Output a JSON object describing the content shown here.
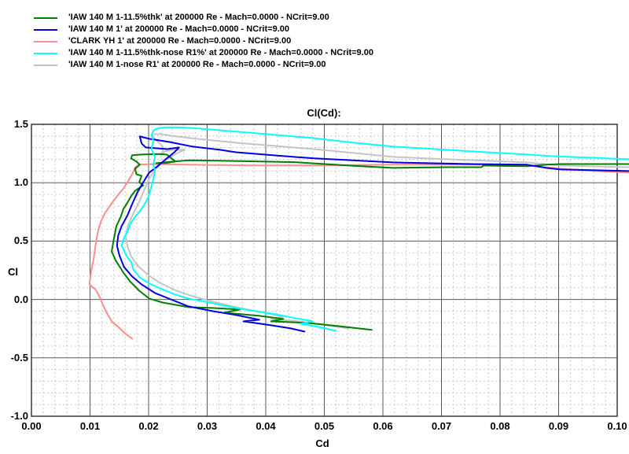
{
  "window": {
    "background": "#ffffff"
  },
  "legend": {
    "items": [
      {
        "label": "'IAW 140 M 1-11.5%thk' at 200000 Re - Mach=0.0000 - NCrit=9.00",
        "color": "#007f00"
      },
      {
        "label": "'IAW 140 M 1' at 200000 Re - Mach=0.0000 - NCrit=9.00",
        "color": "#0000e0"
      },
      {
        "label": "'CLARK YH 1' at 200000 Re - Mach=0.0000 - NCrit=9.00",
        "color": "#ff8c8c"
      },
      {
        "label": "'IAW 140 M 1-11.5%thk-nose R1%' at 200000 Re - Mach=0.0000 - NCrit=9.00",
        "color": "#00ffff"
      },
      {
        "label": "'IAW 140 M 1-nose R1' at 200000 Re - Mach=0.0000 - NCrit=9.00",
        "color": "#c4c4c4"
      }
    ]
  },
  "chart_data": {
    "type": "line",
    "title": "Cl(Cd):",
    "xlabel": "Cd",
    "ylabel": "Cl",
    "xlim": [
      0.0,
      0.1
    ],
    "ylim": [
      -1.0,
      1.5
    ],
    "x_minor_step": 0.002,
    "x_major_step": 0.01,
    "y_minor_step": 0.1,
    "y_major_step": 0.5,
    "grid": {
      "minor_color": "#c8c8c8",
      "major_color": "#5a5a5a",
      "border_color": "#3a3a3a"
    },
    "x_ticks": [
      {
        "v": 0.0,
        "label": "0.00"
      },
      {
        "v": 0.01,
        "label": "0.01"
      },
      {
        "v": 0.02,
        "label": "0.02"
      },
      {
        "v": 0.03,
        "label": "0.03"
      },
      {
        "v": 0.04,
        "label": "0.04"
      },
      {
        "v": 0.05,
        "label": "0.05"
      },
      {
        "v": 0.06,
        "label": "0.06"
      },
      {
        "v": 0.07,
        "label": "0.07"
      },
      {
        "v": 0.08,
        "label": "0.08"
      },
      {
        "v": 0.09,
        "label": "0.09"
      },
      {
        "v": 0.1,
        "label": "0.10"
      }
    ],
    "y_ticks": [
      {
        "v": 1.5,
        "label": "1.5"
      },
      {
        "v": 1.0,
        "label": "1.0"
      },
      {
        "v": 0.5,
        "label": "0.5"
      },
      {
        "v": 0.0,
        "label": "0.0"
      },
      {
        "v": -0.5,
        "label": "-0.5"
      },
      {
        "v": -1.0,
        "label": "-1.0"
      }
    ],
    "series": [
      {
        "name": "'IAW 140 M 1-11.5%thk' at 200000 Re - Mach=0.0000 - NCrit=9.00",
        "color": "#007f00",
        "z": 3,
        "points": [
          [
            0.0581,
            -0.261
          ],
          [
            0.0523,
            -0.228
          ],
          [
            0.047,
            -0.201
          ],
          [
            0.0409,
            -0.187
          ],
          [
            0.043,
            -0.167
          ],
          [
            0.0389,
            -0.14
          ],
          [
            0.0329,
            -0.113
          ],
          [
            0.0356,
            -0.086
          ],
          [
            0.0309,
            -0.073
          ],
          [
            0.0268,
            -0.066
          ],
          [
            0.0224,
            -0.026
          ],
          [
            0.0201,
            0.008
          ],
          [
            0.0184,
            0.075
          ],
          [
            0.0168,
            0.156
          ],
          [
            0.0157,
            0.23
          ],
          [
            0.0144,
            0.332
          ],
          [
            0.0137,
            0.412
          ],
          [
            0.014,
            0.5
          ],
          [
            0.0145,
            0.628
          ],
          [
            0.0152,
            0.702
          ],
          [
            0.0157,
            0.776
          ],
          [
            0.0164,
            0.83
          ],
          [
            0.017,
            0.884
          ],
          [
            0.0177,
            0.931
          ],
          [
            0.0191,
            0.978
          ],
          [
            0.0184,
            1.005
          ],
          [
            0.0188,
            1.059
          ],
          [
            0.0179,
            1.073
          ],
          [
            0.0177,
            1.12
          ],
          [
            0.0185,
            1.154
          ],
          [
            0.0179,
            1.181
          ],
          [
            0.017,
            1.208
          ],
          [
            0.0172,
            1.235
          ],
          [
            0.0188,
            1.241
          ],
          [
            0.0215,
            1.245
          ],
          [
            0.0231,
            1.241
          ],
          [
            0.0239,
            1.208
          ],
          [
            0.0246,
            1.181
          ],
          [
            0.0228,
            1.168
          ],
          [
            0.0213,
            1.167
          ],
          [
            0.024,
            1.18
          ],
          [
            0.0268,
            1.192
          ],
          [
            0.0349,
            1.186
          ],
          [
            0.045,
            1.176
          ],
          [
            0.055,
            1.145
          ],
          [
            0.0617,
            1.127
          ],
          [
            0.0711,
            1.133
          ],
          [
            0.0768,
            1.133
          ],
          [
            0.0772,
            1.147
          ],
          [
            0.0846,
            1.141
          ],
          [
            0.088,
            1.154
          ],
          [
            0.0903,
            1.16
          ],
          [
            0.102,
            1.16
          ]
        ]
      },
      {
        "name": "'IAW 140 M 1' at 200000 Re - Mach=0.0000 - NCrit=9.00",
        "color": "#0000e0",
        "z": 4,
        "points": [
          [
            0.0466,
            -0.275
          ],
          [
            0.0443,
            -0.248
          ],
          [
            0.0409,
            -0.221
          ],
          [
            0.0362,
            -0.187
          ],
          [
            0.0389,
            -0.174
          ],
          [
            0.0349,
            -0.133
          ],
          [
            0.0309,
            -0.1
          ],
          [
            0.0268,
            -0.059
          ],
          [
            0.0238,
            0.001
          ],
          [
            0.0211,
            0.055
          ],
          [
            0.0188,
            0.129
          ],
          [
            0.0172,
            0.197
          ],
          [
            0.0158,
            0.278
          ],
          [
            0.015,
            0.379
          ],
          [
            0.0146,
            0.46
          ],
          [
            0.0148,
            0.547
          ],
          [
            0.0154,
            0.628
          ],
          [
            0.0164,
            0.722
          ],
          [
            0.0172,
            0.817
          ],
          [
            0.0181,
            0.918
          ],
          [
            0.0191,
            1.005
          ],
          [
            0.0201,
            1.086
          ],
          [
            0.0215,
            1.14
          ],
          [
            0.0231,
            1.208
          ],
          [
            0.0244,
            1.261
          ],
          [
            0.0252,
            1.302
          ],
          [
            0.0232,
            1.288
          ],
          [
            0.0212,
            1.295
          ],
          [
            0.0195,
            1.302
          ],
          [
            0.0188,
            1.336
          ],
          [
            0.0185,
            1.396
          ],
          [
            0.0201,
            1.376
          ],
          [
            0.0235,
            1.349
          ],
          [
            0.0275,
            1.309
          ],
          [
            0.0322,
            1.282
          ],
          [
            0.0349,
            1.261
          ],
          [
            0.0416,
            1.234
          ],
          [
            0.0483,
            1.208
          ],
          [
            0.0617,
            1.174
          ],
          [
            0.0752,
            1.16
          ],
          [
            0.0846,
            1.154
          ],
          [
            0.0879,
            1.127
          ],
          [
            0.0903,
            1.113
          ],
          [
            0.102,
            1.1
          ]
        ]
      },
      {
        "name": "'CLARK YH 1' at 200000 Re - Mach=0.0000 - NCrit=9.00",
        "color": "#ff8c8c",
        "z": 2,
        "points": [
          [
            0.0172,
            -0.336
          ],
          [
            0.0161,
            -0.295
          ],
          [
            0.0148,
            -0.235
          ],
          [
            0.0138,
            -0.194
          ],
          [
            0.013,
            -0.127
          ],
          [
            0.0122,
            -0.046
          ],
          [
            0.0117,
            0.015
          ],
          [
            0.011,
            0.082
          ],
          [
            0.0099,
            0.129
          ],
          [
            0.0102,
            0.244
          ],
          [
            0.0106,
            0.345
          ],
          [
            0.011,
            0.48
          ],
          [
            0.0114,
            0.594
          ],
          [
            0.0119,
            0.675
          ],
          [
            0.0126,
            0.743
          ],
          [
            0.0136,
            0.817
          ],
          [
            0.0146,
            0.884
          ],
          [
            0.0157,
            0.951
          ],
          [
            0.0165,
            1.012
          ],
          [
            0.0172,
            1.073
          ],
          [
            0.0177,
            1.133
          ],
          [
            0.0185,
            1.154
          ],
          [
            0.0205,
            1.16
          ],
          [
            0.0268,
            1.154
          ],
          [
            0.0383,
            1.148
          ],
          [
            0.0483,
            1.148
          ],
          [
            0.0617,
            1.154
          ],
          [
            0.0761,
            1.154
          ],
          [
            0.0846,
            1.147
          ],
          [
            0.0903,
            1.12
          ],
          [
            0.0966,
            1.1
          ],
          [
            0.102,
            1.086
          ]
        ]
      },
      {
        "name": "'IAW 140 M 1-11.5%thk-nose R1%' at 200000 Re - Mach=0.0000 - NCrit=9.00",
        "color": "#00ffff",
        "z": 5,
        "points": [
          [
            0.0519,
            -0.268
          ],
          [
            0.049,
            -0.235
          ],
          [
            0.046,
            -0.208
          ],
          [
            0.048,
            -0.187
          ],
          [
            0.045,
            -0.16
          ],
          [
            0.0423,
            -0.133
          ],
          [
            0.0389,
            -0.106
          ],
          [
            0.0349,
            -0.073
          ],
          [
            0.0309,
            -0.032
          ],
          [
            0.0268,
            0.008
          ],
          [
            0.0246,
            0.042
          ],
          [
            0.0219,
            0.096
          ],
          [
            0.0199,
            0.143
          ],
          [
            0.0185,
            0.19
          ],
          [
            0.0174,
            0.257
          ],
          [
            0.017,
            0.325
          ],
          [
            0.0164,
            0.359
          ],
          [
            0.0154,
            0.46
          ],
          [
            0.0158,
            0.527
          ],
          [
            0.0164,
            0.581
          ],
          [
            0.0169,
            0.648
          ],
          [
            0.0176,
            0.702
          ],
          [
            0.0184,
            0.749
          ],
          [
            0.0191,
            0.797
          ],
          [
            0.0199,
            0.871
          ],
          [
            0.0204,
            0.951
          ],
          [
            0.0208,
            1.032
          ],
          [
            0.0211,
            1.1
          ],
          [
            0.0208,
            1.154
          ],
          [
            0.0211,
            1.221
          ],
          [
            0.0205,
            1.288
          ],
          [
            0.0208,
            1.356
          ],
          [
            0.0205,
            1.41
          ],
          [
            0.0209,
            1.45
          ],
          [
            0.0217,
            1.468
          ],
          [
            0.0231,
            1.474
          ],
          [
            0.0252,
            1.474
          ],
          [
            0.0275,
            1.468
          ],
          [
            0.0302,
            1.457
          ],
          [
            0.0349,
            1.437
          ],
          [
            0.0416,
            1.41
          ],
          [
            0.0479,
            1.383
          ],
          [
            0.055,
            1.342
          ],
          [
            0.0617,
            1.309
          ],
          [
            0.0752,
            1.268
          ],
          [
            0.0846,
            1.241
          ],
          [
            0.0886,
            1.228
          ],
          [
            0.102,
            1.201
          ]
        ]
      },
      {
        "name": "'IAW 140 M 1-nose R1' at 200000 Re - Mach=0.0000 - NCrit=9.00",
        "color": "#c4c4c4",
        "z": 1,
        "points": [
          [
            0.0541,
            -0.248
          ],
          [
            0.0523,
            -0.235
          ],
          [
            0.0497,
            -0.214
          ],
          [
            0.0456,
            -0.187
          ],
          [
            0.0409,
            -0.167
          ],
          [
            0.043,
            -0.147
          ],
          [
            0.0389,
            -0.106
          ],
          [
            0.0349,
            -0.066
          ],
          [
            0.0309,
            -0.019
          ],
          [
            0.0275,
            0.028
          ],
          [
            0.0244,
            0.082
          ],
          [
            0.0219,
            0.143
          ],
          [
            0.0199,
            0.21
          ],
          [
            0.0181,
            0.291
          ],
          [
            0.017,
            0.372
          ],
          [
            0.0164,
            0.453
          ],
          [
            0.0161,
            0.547
          ],
          [
            0.0165,
            0.635
          ],
          [
            0.0174,
            0.736
          ],
          [
            0.0184,
            0.837
          ],
          [
            0.0192,
            0.931
          ],
          [
            0.0201,
            1.032
          ],
          [
            0.0211,
            1.113
          ],
          [
            0.0224,
            1.174
          ],
          [
            0.0242,
            1.234
          ],
          [
            0.0255,
            1.268
          ],
          [
            0.0262,
            1.282
          ],
          [
            0.0242,
            1.282
          ],
          [
            0.0228,
            1.268
          ],
          [
            0.0223,
            1.248
          ],
          [
            0.0225,
            1.302
          ],
          [
            0.0219,
            1.336
          ],
          [
            0.0209,
            1.383
          ],
          [
            0.0205,
            1.416
          ],
          [
            0.0221,
            1.416
          ],
          [
            0.0248,
            1.396
          ],
          [
            0.0282,
            1.376
          ],
          [
            0.0349,
            1.342
          ],
          [
            0.0416,
            1.315
          ],
          [
            0.0479,
            1.289
          ],
          [
            0.0617,
            1.221
          ],
          [
            0.0671,
            1.208
          ],
          [
            0.0846,
            1.174
          ],
          [
            0.0903,
            1.147
          ],
          [
            0.102,
            1.133
          ]
        ]
      }
    ]
  }
}
